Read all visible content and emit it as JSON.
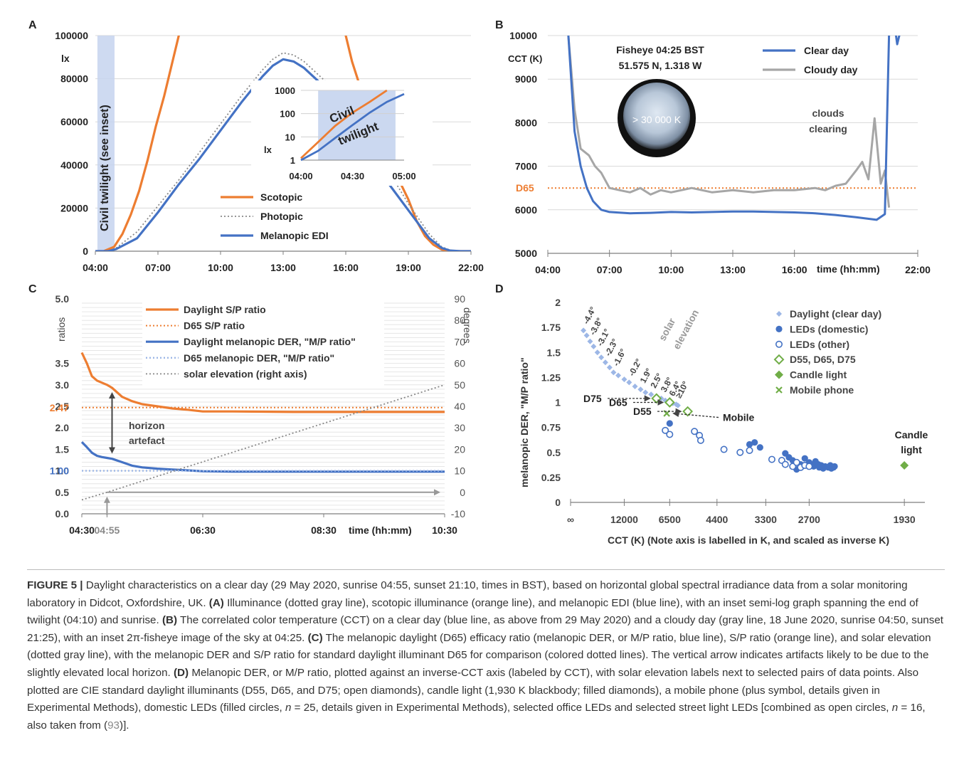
{
  "colors": {
    "scotopic": "#ed7d31",
    "melanopic": "#4472c4",
    "photopic": "#888888",
    "cloudy": "#a6a6a6",
    "inverse_ref": "#9db7e6",
    "twilight_band": "#c5d4ee",
    "standard_illuminant": "#70ad47",
    "caption_text": "#333333",
    "ref_link": "#888888"
  },
  "panels": {
    "A": {
      "letter": "A",
      "unit": "lx",
      "vertical_band_label": "Civil twilight (see inset)",
      "inset": {
        "unit": "lx",
        "label_line1": "Civil",
        "label_line2": "twilight"
      }
    },
    "B": {
      "letter": "B",
      "fisheye_line1": "Fisheye 04:25 BST",
      "fisheye_line2": "51.575 N, 1.318 W",
      "fisheye_value": "> 30 000 K",
      "annotation_line1": "clouds",
      "annotation_line2": "clearing"
    },
    "C": {
      "letter": "C",
      "arrow_label_line1": "horizon",
      "arrow_label_line2": "artefact"
    },
    "D": {
      "letter": "D",
      "elevation_label_line1": "solar",
      "elevation_label_line2": "elevation",
      "mobile_label": "Mobile",
      "candle_label_line1": "Candle",
      "candle_label_line2": "light"
    }
  },
  "chart_data": [
    {
      "id": "A",
      "type": "line",
      "xlim": [
        4,
        22
      ],
      "ylim": [
        0,
        100000
      ],
      "x_ticks": [
        "04:00",
        "07:00",
        "10:00",
        "13:00",
        "16:00",
        "19:00",
        "22:00"
      ],
      "y_ticks": [
        "0",
        "20000",
        "40000",
        "60000",
        "80000",
        "100000"
      ],
      "ylabel": "lx",
      "legend_position": "bottom-center",
      "highlight_band": {
        "x_from": 4.1,
        "x_to": 4.92,
        "label": "Civil twilight (see inset)"
      },
      "series": [
        {
          "name": "Scotopic",
          "style": "solid",
          "x": [
            4.0,
            4.4,
            4.9,
            5.3,
            5.7,
            6.1,
            6.5,
            6.9,
            7.3,
            7.7,
            8.0,
            8.3,
            15.7,
            16.0,
            16.3,
            16.7,
            17.1,
            17.5,
            18.0,
            18.5,
            19.0,
            19.4,
            19.8,
            20.2,
            20.6,
            21.0,
            21.5,
            22.0
          ],
          "y": [
            0,
            0,
            2000,
            8000,
            17000,
            28000,
            42000,
            58000,
            72000,
            88000,
            100000,
            112000,
            112000,
            100000,
            88000,
            76000,
            64000,
            54000,
            44000,
            34000,
            24000,
            14000,
            7000,
            3000,
            800,
            0,
            0,
            0
          ]
        },
        {
          "name": "Photopic",
          "style": "dotted",
          "x": [
            4.0,
            4.6,
            5.0,
            6.0,
            7.0,
            8.0,
            9.0,
            10.0,
            11.0,
            12.0,
            12.5,
            13.0,
            13.5,
            14.0,
            15.0,
            16.0,
            17.0,
            18.0,
            19.0,
            20.0,
            20.6,
            21.0,
            21.5,
            22.0
          ],
          "y": [
            0,
            0,
            1500,
            9000,
            21000,
            33000,
            46000,
            59000,
            72000,
            84000,
            89000,
            92000,
            91000,
            88000,
            79000,
            68000,
            54000,
            38000,
            22000,
            8000,
            2000,
            500,
            0,
            0
          ]
        },
        {
          "name": "Melanopic EDI",
          "style": "solid",
          "x": [
            4.0,
            4.6,
            5.0,
            6.0,
            7.0,
            8.0,
            9.0,
            10.0,
            11.0,
            12.0,
            12.5,
            13.0,
            13.5,
            14.0,
            15.0,
            15.5,
            16.0,
            17.0,
            18.0,
            19.0,
            20.0,
            20.6,
            21.0,
            21.5,
            22.0
          ],
          "y": [
            0,
            0,
            1000,
            6000,
            18000,
            31000,
            43000,
            56000,
            69000,
            81000,
            86000,
            89000,
            88000,
            85000,
            76000,
            66000,
            58000,
            45000,
            32000,
            19000,
            6000,
            1500,
            300,
            0,
            0
          ]
        }
      ]
    },
    {
      "id": "A-inset",
      "type": "line",
      "yscale": "log",
      "xlim": [
        "04:00",
        "05:00"
      ],
      "ylim": [
        1,
        1000
      ],
      "x_ticks": [
        "04:00",
        "04:30",
        "05:00"
      ],
      "y_ticks": [
        "1",
        "10",
        "100",
        "1000"
      ],
      "ylabel": "lx",
      "series": [
        {
          "name": "Scotopic",
          "x": [
            "04:00",
            "04:10",
            "04:20",
            "04:30",
            "04:40",
            "04:50"
          ],
          "y": [
            1.2,
            6,
            30,
            110,
            320,
            1000
          ]
        },
        {
          "name": "Melanopic EDI",
          "x": [
            "04:00",
            "04:10",
            "04:20",
            "04:30",
            "04:40",
            "04:50",
            "05:00"
          ],
          "y": [
            1,
            2.5,
            9,
            32,
            110,
            320,
            700
          ]
        }
      ]
    },
    {
      "id": "B",
      "type": "line",
      "xlim": [
        4,
        22
      ],
      "ylim": [
        5000,
        10000
      ],
      "x_ticks": [
        "04:00",
        "07:00",
        "10:00",
        "13:00",
        "16:00",
        "22:00"
      ],
      "x_unit_label": "time (hh:mm)",
      "y_ticks": [
        "5000",
        "6000",
        "7000",
        "8000",
        "9000",
        "10000"
      ],
      "ylabel": "CCT (K)",
      "legend_position": "top-right",
      "reference_line": {
        "label": "D65",
        "y": 6500
      },
      "series": [
        {
          "name": "Clear day",
          "x": [
            5.0,
            5.3,
            5.6,
            5.9,
            6.2,
            6.6,
            7.0,
            8.0,
            9.0,
            10.0,
            11.0,
            12.0,
            13.0,
            14.0,
            15.0,
            16.0,
            17.0,
            18.0,
            19.0,
            20.0,
            20.4,
            20.6,
            20.8,
            21.0,
            21.2
          ],
          "y": [
            10000,
            7800,
            7000,
            6500,
            6200,
            6000,
            5950,
            5920,
            5930,
            5950,
            5940,
            5950,
            5960,
            5960,
            5950,
            5940,
            5920,
            5880,
            5830,
            5770,
            5900,
            10000,
            10500,
            9800,
            10200
          ]
        },
        {
          "name": "Cloudy day",
          "x": [
            5.0,
            5.3,
            5.6,
            6.0,
            6.3,
            6.6,
            7.0,
            7.5,
            8.0,
            8.5,
            9.0,
            9.5,
            10.0,
            11.0,
            12.0,
            13.0,
            14.0,
            15.0,
            16.0,
            17.0,
            17.5,
            18.0,
            18.5,
            19.0,
            19.3,
            19.6,
            19.9,
            20.2,
            20.4,
            20.6
          ],
          "y": [
            10000,
            8300,
            7400,
            7250,
            7000,
            6850,
            6500,
            6450,
            6400,
            6500,
            6350,
            6450,
            6400,
            6500,
            6400,
            6450,
            6400,
            6450,
            6450,
            6500,
            6450,
            6550,
            6600,
            6900,
            7100,
            6700,
            8100,
            6600,
            6900,
            6050
          ]
        }
      ]
    },
    {
      "id": "C",
      "type": "line",
      "xlim": [
        "04:30",
        "10:30"
      ],
      "ylim": [
        0,
        5
      ],
      "x_ticks": [
        "04:30",
        "04:55",
        "06:30",
        "08:30",
        "10:30"
      ],
      "x_unit_label": "time (hh:mm)",
      "y_ticks": [
        "0.0",
        "0.5",
        "1.0",
        "1.5",
        "2.0",
        "2.5",
        "3.0",
        "3.5",
        "5.0"
      ],
      "y_marked_values": [
        "2.47",
        "1.00"
      ],
      "ylabel": "ratios",
      "y2lim": [
        -10,
        90
      ],
      "y2_ticks": [
        "-10",
        "0",
        "10",
        "20",
        "30",
        "40",
        "50",
        "60",
        "70",
        "80",
        "90"
      ],
      "y2label": "degrees",
      "legend_position": "top",
      "series": [
        {
          "name": "Daylight S/P ratio",
          "x": [
            "04:30",
            "04:35",
            "04:40",
            "04:45",
            "04:50",
            "04:55",
            "05:00",
            "05:10",
            "05:20",
            "05:30",
            "05:45",
            "06:00",
            "06:15",
            "06:30",
            "07:00",
            "08:00",
            "09:00",
            "10:30"
          ],
          "y": [
            3.75,
            3.5,
            3.2,
            3.1,
            3.05,
            3.0,
            2.93,
            2.72,
            2.62,
            2.55,
            2.5,
            2.45,
            2.42,
            2.38,
            2.38,
            2.37,
            2.37,
            2.37
          ]
        },
        {
          "name": "D65 S/P ratio",
          "x": [
            "04:30",
            "10:30"
          ],
          "y": [
            2.47,
            2.47
          ]
        },
        {
          "name": "Daylight melanopic DER, \"M/P ratio\"",
          "x": [
            "04:30",
            "04:35",
            "04:40",
            "04:45",
            "04:50",
            "04:55",
            "05:00",
            "05:10",
            "05:20",
            "05:30",
            "05:45",
            "06:00",
            "06:15",
            "06:30",
            "07:00",
            "08:00",
            "09:00",
            "10:30"
          ],
          "y": [
            1.67,
            1.55,
            1.42,
            1.35,
            1.32,
            1.3,
            1.28,
            1.2,
            1.12,
            1.08,
            1.05,
            1.03,
            1.01,
            0.99,
            0.98,
            0.98,
            0.98,
            0.98
          ]
        },
        {
          "name": "D65 melanopic DER, \"M/P ratio\"",
          "x": [
            "04:30",
            "10:30"
          ],
          "y": [
            1.0,
            1.0
          ]
        },
        {
          "name": "solar elevation (right axis)",
          "axis": "right",
          "x": [
            "04:30",
            "04:55",
            "10:30"
          ],
          "y": [
            -3.5,
            0,
            50
          ]
        }
      ],
      "annotations": {
        "horizon_arrow_x": "05:00",
        "horizon_arrow_y": [
          1.3,
          2.93
        ],
        "sunrise_marker_x": "04:55"
      }
    },
    {
      "id": "D",
      "type": "scatter",
      "x_axis_note": "inverse CCT",
      "xlim_mired": [
        0,
        550
      ],
      "x_ticks": [
        "∞",
        "12000",
        "6500",
        "4400",
        "3300",
        "2700",
        "1930"
      ],
      "xlabel": "CCT (K) (Note axis is labelled in K, and scaled as inverse K)",
      "ylim": [
        0,
        2
      ],
      "y_ticks": [
        "0",
        "0.25",
        "0.5",
        "0.75",
        "1",
        "1.25",
        "1.5",
        "1.75",
        "2"
      ],
      "ylabel": "melanopic DER, \"M/P ratio\"",
      "legend_position": "top-right",
      "series": [
        {
          "name": "Daylight (clear day)",
          "marker": "small-diamond",
          "cct": [
            50000,
            40000,
            33000,
            28000,
            24000,
            21000,
            18500,
            16500,
            15000,
            13500,
            12000,
            11000,
            10000,
            9200,
            8600,
            8000,
            7500,
            7100,
            6800,
            6500,
            6300,
            6100,
            6000
          ],
          "y": [
            1.72,
            1.67,
            1.61,
            1.56,
            1.5,
            1.45,
            1.4,
            1.35,
            1.3,
            1.27,
            1.23,
            1.2,
            1.16,
            1.13,
            1.1,
            1.08,
            1.06,
            1.04,
            1.02,
            1.0,
            0.99,
            0.98,
            0.97
          ]
        },
        {
          "name": "LEDs (domestic)",
          "marker": "filled-circle",
          "cct": [
            6500,
            3600,
            3500,
            3400,
            3000,
            2950,
            2900,
            2850,
            2800,
            2750,
            2720,
            2700,
            2680,
            2650,
            2630,
            2600,
            2590,
            2570,
            2550,
            2530,
            2500,
            2480,
            2470,
            2450,
            2440
          ],
          "y": [
            0.79,
            0.58,
            0.6,
            0.55,
            0.49,
            0.45,
            0.42,
            0.33,
            0.38,
            0.44,
            0.37,
            0.4,
            0.38,
            0.36,
            0.41,
            0.38,
            0.35,
            0.37,
            0.34,
            0.36,
            0.35,
            0.37,
            0.34,
            0.35,
            0.36
          ]
        },
        {
          "name": "LEDs (other)",
          "marker": "open-circle",
          "cct": [
            6800,
            6500,
            5200,
            5000,
            4950,
            4200,
            3800,
            3600,
            3200,
            3050,
            3000,
            2900,
            2850,
            2800,
            2750,
            2700
          ],
          "y": [
            0.72,
            0.68,
            0.71,
            0.67,
            0.62,
            0.53,
            0.5,
            0.52,
            0.43,
            0.42,
            0.38,
            0.36,
            0.4,
            0.35,
            0.37,
            0.36
          ]
        },
        {
          "name": "D55, D65, D75",
          "marker": "open-diamond",
          "cct": [
            5500,
            6500,
            7500
          ],
          "y": [
            0.91,
            1.0,
            1.04
          ]
        },
        {
          "name": "Candle light",
          "marker": "filled-diamond",
          "cct": [
            1930
          ],
          "y": [
            0.37
          ]
        },
        {
          "name": "Mobile phone",
          "marker": "x",
          "cct": [
            6700
          ],
          "y": [
            0.89
          ]
        }
      ],
      "elevation_labels": [
        "-4.4°",
        "-3.8°",
        "-3.1°",
        "-2.3°",
        "-1.6°",
        "-0.2°",
        "1.9°",
        "2.5°",
        "3.8°",
        "6.4°",
        "≥10°"
      ],
      "illuminant_labels": [
        "D75",
        "D65",
        "D55"
      ]
    }
  ],
  "caption": {
    "label": "FIGURE 5 |",
    "intro": " Daylight characteristics on a clear day (29 May 2020, sunrise 04:55, sunset 21:10, times in BST), based on horizontal global spectral irradiance data from a solar monitoring laboratory in Didcot, Oxfordshire, UK. ",
    "label_a": "(A)",
    "text_a": " Illuminance (dotted gray line), scotopic illuminance (orange line), and melanopic EDI (blue line), with an inset semi-log graph spanning the end of twilight (04:10) and sunrise. ",
    "label_b": "(B)",
    "text_b": " The correlated color temperature (CCT) on a clear day (blue line, as above from 29 May 2020) and a cloudy day (gray line, 18 June 2020, sunrise 04:50, sunset 21:25), with an inset 2π-fisheye image of the sky at 04:25. ",
    "label_c": "(C)",
    "text_c": " The melanopic daylight (D65) efficacy ratio (melanopic DER, or M/P ratio, blue line), S/P ratio (orange line), and solar elevation (dotted gray line), with the melanopic DER and S/P ratio for standard daylight illuminant D65 for comparison (colored dotted lines). The vertical arrow indicates artifacts likely to be due to the slightly elevated local horizon. ",
    "label_d": "(D)",
    "text_d1": " Melanopic DER, or M/P ratio, plotted against an inverse-CCT axis (labeled by CCT), with solar elevation labels next to selected pairs of data points. Also plotted are CIE standard daylight illuminants (D55, D65, and D75; open diamonds), candle light (1,930 K blackbody; filled diamonds), a mobile phone (plus symbol, details given in Experimental Methods), domestic LEDs (filled circles, ",
    "n1_var": "n",
    "n1_value": " = 25, details given in Experimental Methods), selected office LEDs and selected street light LEDs [combined as open circles, ",
    "n2_var": "n",
    "n2_value": " = 16, also taken from (",
    "ref": "93",
    "end": ")]."
  }
}
